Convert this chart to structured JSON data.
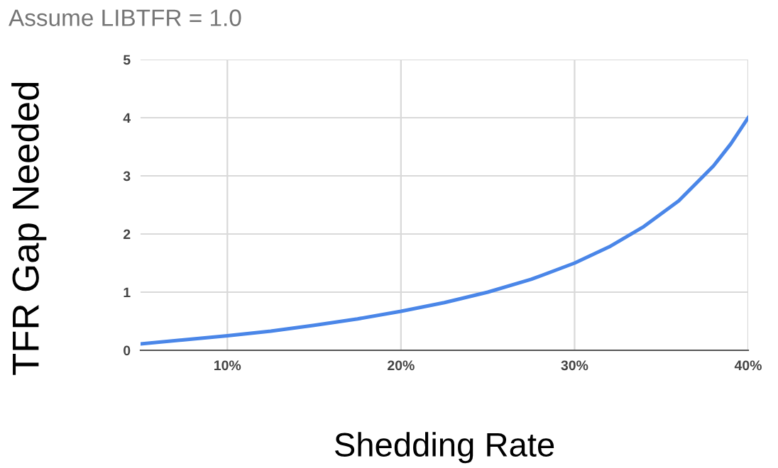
{
  "chart_data": {
    "type": "line",
    "title": "Assume LIBTFR = 1.0",
    "xlabel": "Shedding Rate",
    "ylabel": "TFR Gap Needed",
    "x": [
      5,
      7.5,
      10,
      12.5,
      15,
      17.5,
      20,
      22.5,
      25,
      27.5,
      30,
      32,
      34,
      36,
      38,
      39,
      40
    ],
    "series": [
      {
        "color": "#4a86e8",
        "values": [
          0.11,
          0.18,
          0.25,
          0.33,
          0.43,
          0.54,
          0.67,
          0.82,
          1.0,
          1.22,
          1.5,
          1.78,
          2.13,
          2.57,
          3.17,
          3.55,
          4.0
        ]
      }
    ],
    "xlim": [
      5,
      40
    ],
    "xticks": [
      {
        "value": 10,
        "label": "10%"
      },
      {
        "value": 20,
        "label": "20%"
      },
      {
        "value": 30,
        "label": "30%"
      },
      {
        "value": 40,
        "label": "40%"
      }
    ],
    "ylim": [
      0,
      5
    ],
    "yticks": [
      0,
      1,
      2,
      3,
      4,
      5
    ],
    "grid": true,
    "legend": false,
    "marker": "none",
    "line_style": "solid"
  }
}
